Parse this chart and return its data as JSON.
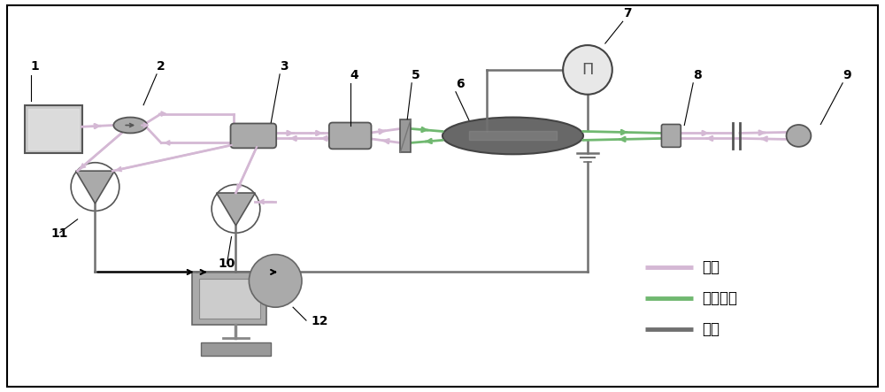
{
  "bg_color": "#ffffff",
  "border_color": "#000000",
  "figure_size": [
    10.0,
    4.43
  ],
  "dpi": 100,
  "legend_items": [
    {
      "label": "光纤",
      "color": "#d4b8d4",
      "lw": 3
    },
    {
      "label": "自由空间",
      "color": "#70b870",
      "lw": 3
    },
    {
      "label": "电路",
      "color": "#707070",
      "lw": 3
    }
  ],
  "fiber_color": "#d4b8d4",
  "freespace_color": "#70b870",
  "circuit_color": "#707070",
  "comp_color": "#aaaaaa",
  "comp_edge": "#555555",
  "dark_color": "#686868",
  "label_fontsize": 10,
  "legend_fontsize": 12
}
